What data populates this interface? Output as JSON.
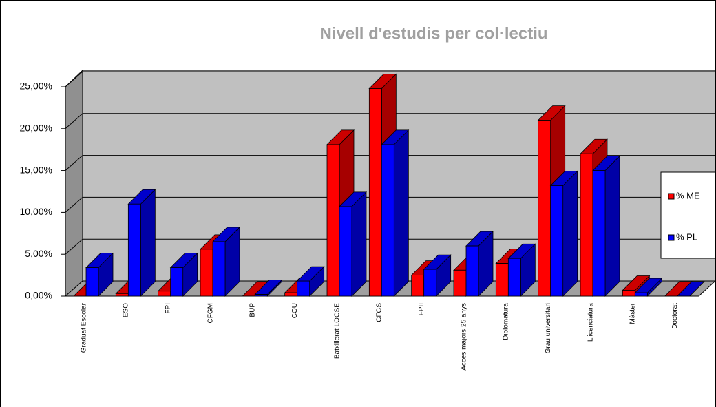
{
  "chart_data": {
    "type": "bar3d",
    "title": "Nivell d'estudis per col·lectiu",
    "categories": [
      "Graduat Escolar",
      "ESO",
      "FPI",
      "CFGM",
      "BUP",
      "COU",
      "Batxillerat LOGSE",
      "CFGS",
      "FPII",
      "Accés majors 25 anys",
      "Diplomatura",
      "Grau universitari",
      "Llicenciatura",
      "Màster",
      "Doctorat"
    ],
    "series": [
      {
        "name": "% ME",
        "color": "#ff0000",
        "values": [
          0,
          0.3,
          0.6,
          5.6,
          0,
          0.4,
          18.1,
          24.8,
          2.5,
          3.1,
          3.9,
          21,
          17,
          0.7,
          0
        ]
      },
      {
        "name": "% PL",
        "color": "#0000ff",
        "values": [
          3.4,
          11,
          3.4,
          6.5,
          0.2,
          1.8,
          10.7,
          18.1,
          3.2,
          6.0,
          4.5,
          13.2,
          15,
          0.4,
          0
        ]
      }
    ],
    "ylim": [
      0,
      25
    ],
    "yticks": [
      {
        "value": 0,
        "label": "0,00%"
      },
      {
        "value": 5,
        "label": "5,00%"
      },
      {
        "value": 10,
        "label": "10,00%"
      },
      {
        "value": 15,
        "label": "15,00%"
      },
      {
        "value": 20,
        "label": "20,00%"
      },
      {
        "value": 25,
        "label": "25,00%"
      }
    ],
    "grid": true,
    "legend": "right"
  }
}
